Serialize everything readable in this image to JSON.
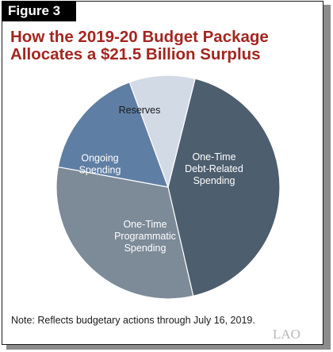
{
  "figure_label": "Figure 3",
  "title_lines": [
    "How the 2019-20 Budget Package",
    "Allocates a $21.5 Billion Surplus"
  ],
  "chart_data": {
    "type": "pie",
    "title": "How the 2019-20 Budget Package Allocates a $21.5 Billion Surplus",
    "slices": [
      {
        "label_lines": [
          "One-Time",
          "Debt-Related",
          "Spending"
        ],
        "value": 42.5,
        "color": "#4d5e6e"
      },
      {
        "label_lines": [
          "One-Time",
          "Programmatic",
          "Spending"
        ],
        "value": 31.5,
        "color": "#7d8a97"
      },
      {
        "label_lines": [
          "Ongoing",
          "Spending"
        ],
        "value": 16.5,
        "color": "#5f7ea4"
      },
      {
        "label_lines": [
          "Reserves"
        ],
        "value": 9.5,
        "color": "#d2dae6"
      }
    ],
    "label_colors": [
      "#ffffff",
      "#ffffff",
      "#ffffff",
      "#1a1a1a"
    ]
  },
  "note": "Note: Reflects budgetary actions through July 16, 2019.",
  "logo_text": "LAO"
}
